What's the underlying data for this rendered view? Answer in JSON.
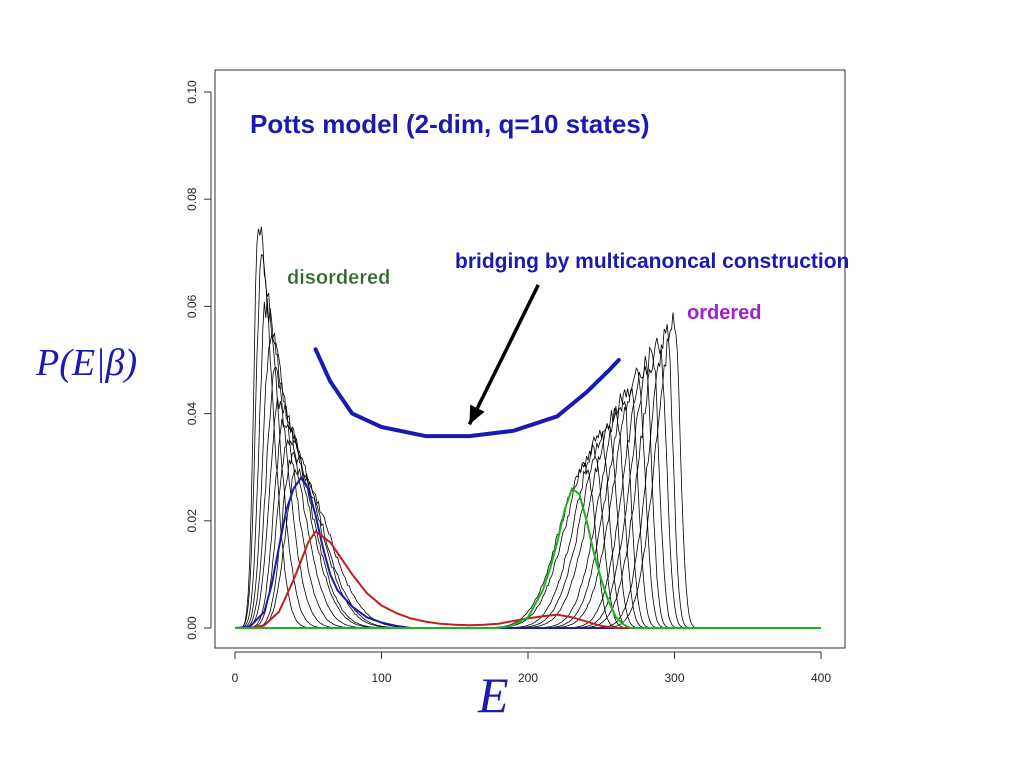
{
  "chart_data": {
    "type": "line",
    "title": "Potts model (2-dim, q=10 states)",
    "xlabel": "E",
    "ylabel": "P(E|β)",
    "xlim": [
      0,
      400
    ],
    "ylim": [
      0,
      0.1
    ],
    "x_ticks": [
      0,
      100,
      200,
      300,
      400
    ],
    "y_ticks": [
      0.0,
      0.02,
      0.04,
      0.06,
      0.08,
      0.1
    ],
    "x_tick_labels": [
      "0",
      "100",
      "200",
      "300",
      "400"
    ],
    "y_tick_labels": [
      "0.00",
      "0.02",
      "0.04",
      "0.06",
      "0.08",
      "0.10"
    ],
    "grid": false,
    "colors": {
      "black_family": "#000000",
      "blue": "#1a1aa8",
      "red": "#c02020",
      "green": "#20b020",
      "title": "#1a1ab0",
      "disordered": "#2a6a2a",
      "ordered": "#a020d0",
      "bridge": "#1a1ab0"
    },
    "disordered_family": [
      {
        "peak_x": 16,
        "peak_y": 0.075,
        "width": 5
      },
      {
        "peak_x": 18,
        "peak_y": 0.068,
        "width": 6
      },
      {
        "peak_x": 21,
        "peak_y": 0.06,
        "width": 7
      },
      {
        "peak_x": 24,
        "peak_y": 0.053,
        "width": 8
      },
      {
        "peak_x": 27,
        "peak_y": 0.047,
        "width": 9
      },
      {
        "peak_x": 30,
        "peak_y": 0.042,
        "width": 10
      },
      {
        "peak_x": 33,
        "peak_y": 0.038,
        "width": 10
      },
      {
        "peak_x": 36,
        "peak_y": 0.035,
        "width": 11
      },
      {
        "peak_x": 39,
        "peak_y": 0.032,
        "width": 11
      },
      {
        "peak_x": 42,
        "peak_y": 0.029,
        "width": 12
      }
    ],
    "ordered_family": [
      {
        "peak_x": 240,
        "peak_y": 0.03,
        "width": 12
      },
      {
        "peak_x": 245,
        "peak_y": 0.033,
        "width": 12
      },
      {
        "peak_x": 250,
        "peak_y": 0.036,
        "width": 11
      },
      {
        "peak_x": 255,
        "peak_y": 0.038,
        "width": 11
      },
      {
        "peak_x": 260,
        "peak_y": 0.04,
        "width": 11
      },
      {
        "peak_x": 265,
        "peak_y": 0.043,
        "width": 10
      },
      {
        "peak_x": 270,
        "peak_y": 0.045,
        "width": 10
      },
      {
        "peak_x": 275,
        "peak_y": 0.047,
        "width": 10
      },
      {
        "peak_x": 280,
        "peak_y": 0.049,
        "width": 9
      },
      {
        "peak_x": 285,
        "peak_y": 0.051,
        "width": 9
      },
      {
        "peak_x": 290,
        "peak_y": 0.053,
        "width": 9
      },
      {
        "peak_x": 295,
        "peak_y": 0.055,
        "width": 8
      },
      {
        "peak_x": 300,
        "peak_y": 0.057,
        "width": 8
      }
    ],
    "series": [
      {
        "color": "blue",
        "x": [
          0,
          10,
          20,
          25,
          30,
          35,
          40,
          45,
          50,
          55,
          60,
          65,
          70,
          80,
          90,
          100,
          110,
          120,
          200,
          400
        ],
        "y": [
          0,
          0.0002,
          0.003,
          0.008,
          0.015,
          0.022,
          0.026,
          0.028,
          0.026,
          0.021,
          0.015,
          0.01,
          0.007,
          0.004,
          0.002,
          0.001,
          0.0004,
          0,
          0,
          0
        ]
      },
      {
        "color": "red",
        "x": [
          0,
          10,
          20,
          30,
          40,
          50,
          55,
          60,
          65,
          70,
          80,
          90,
          100,
          110,
          120,
          130,
          140,
          150,
          160,
          170,
          180,
          190,
          200,
          210,
          220,
          230,
          240,
          250,
          260,
          400
        ],
        "y": [
          0,
          0,
          0.0005,
          0.003,
          0.009,
          0.016,
          0.018,
          0.017,
          0.016,
          0.014,
          0.01,
          0.0065,
          0.0042,
          0.0028,
          0.0018,
          0.0012,
          0.0008,
          0.0006,
          0.0005,
          0.0006,
          0.0008,
          0.0013,
          0.0018,
          0.0022,
          0.0025,
          0.002,
          0.0012,
          0.0004,
          0,
          0
        ]
      },
      {
        "color": "green",
        "x": [
          0,
          180,
          190,
          200,
          210,
          215,
          220,
          225,
          230,
          235,
          240,
          245,
          250,
          255,
          260,
          265,
          270,
          400
        ],
        "y": [
          0,
          0,
          0.0005,
          0.002,
          0.007,
          0.011,
          0.016,
          0.022,
          0.026,
          0.025,
          0.02,
          0.014,
          0.009,
          0.005,
          0.002,
          0.0007,
          0,
          0
        ]
      }
    ],
    "annotations": {
      "disordered": "disordered",
      "ordered": "ordered",
      "bridging": "bridging by multicanoncal construction"
    },
    "bridge_curve": {
      "x": [
        55,
        65,
        80,
        100,
        130,
        160,
        190,
        220,
        240,
        255,
        262
      ],
      "y": [
        0.052,
        0.046,
        0.04,
        0.0375,
        0.0358,
        0.0358,
        0.0368,
        0.0395,
        0.044,
        0.048,
        0.05
      ]
    },
    "arrow": {
      "from": [
        207,
        0.064
      ],
      "to": [
        160,
        0.038
      ]
    }
  }
}
